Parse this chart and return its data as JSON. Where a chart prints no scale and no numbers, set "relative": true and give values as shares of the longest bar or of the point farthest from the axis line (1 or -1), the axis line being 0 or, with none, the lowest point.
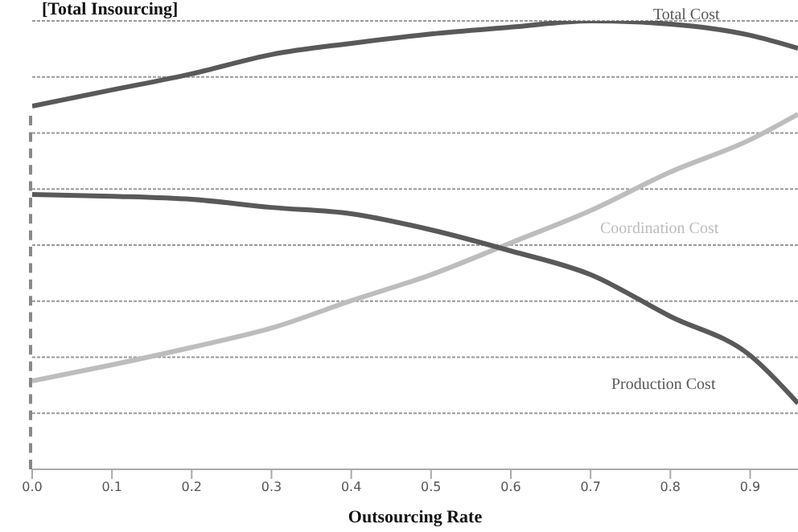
{
  "chart_data": {
    "type": "line",
    "relative": true,
    "xlabel": "Outsourcing Rate",
    "annotations": [
      "[Total Insourcing]"
    ],
    "x": [
      0,
      0.1,
      0.2,
      0.3,
      0.4,
      0.5,
      0.6,
      0.7,
      0.8,
      0.9,
      0.96
    ],
    "xlim": [
      0,
      0.96
    ],
    "xticks": [
      {
        "value": 0,
        "label": "0.0"
      },
      {
        "value": 0.1,
        "label": "0.1"
      },
      {
        "value": 0.2,
        "label": "0.2"
      },
      {
        "value": 0.3,
        "label": "0.3"
      },
      {
        "value": 0.4,
        "label": "0.4"
      },
      {
        "value": 0.5,
        "label": "0.5"
      },
      {
        "value": 0.6,
        "label": "0.6"
      },
      {
        "value": 0.7,
        "label": "0.7"
      },
      {
        "value": 0.8,
        "label": "0.8"
      },
      {
        "value": 0.9,
        "label": "0.9"
      }
    ],
    "series": [
      {
        "name": "Total Cost",
        "color": "#595959",
        "values": [
          0.81,
          0.846,
          0.882,
          0.925,
          0.95,
          0.971,
          0.986,
          1,
          0.993,
          0.968,
          0.939
        ]
      },
      {
        "name": "Coordination Cost",
        "color": "#bdbdbd",
        "values": [
          0.197,
          0.233,
          0.272,
          0.315,
          0.376,
          0.434,
          0.505,
          0.577,
          0.663,
          0.735,
          0.792
        ]
      },
      {
        "name": "Production Cost",
        "color": "#595959",
        "values": [
          0.613,
          0.609,
          0.602,
          0.584,
          0.57,
          0.534,
          0.487,
          0.434,
          0.341,
          0.254,
          0.147
        ]
      }
    ],
    "grid": "y",
    "legend": false,
    "marker": "none",
    "line_style": "solid"
  }
}
